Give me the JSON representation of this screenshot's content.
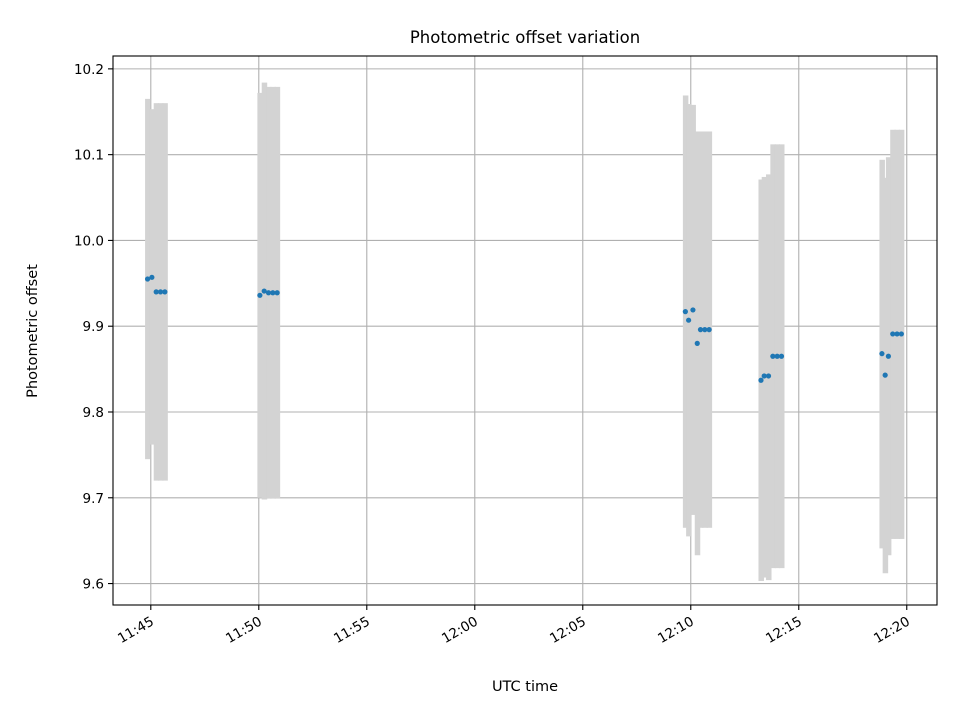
{
  "chart_data": {
    "type": "scatter",
    "title": "Photometric offset variation",
    "xlabel": "UTC time",
    "ylabel": "Photometric offset",
    "x_ticks": [
      "11:45",
      "11:50",
      "11:55",
      "12:00",
      "12:05",
      "12:10",
      "12:15",
      "12:20"
    ],
    "x_tick_minutes": [
      0,
      5,
      10,
      15,
      20,
      25,
      30,
      35
    ],
    "y_ticks": [
      "9.6",
      "9.7",
      "9.8",
      "9.9",
      "10.0",
      "10.1",
      "10.2"
    ],
    "xlim_minutes": [
      -1.75,
      36.4
    ],
    "ylim": [
      9.575,
      10.215
    ],
    "grid": true,
    "marker_color": "#1f77b4",
    "errorbar_color": "#d3d3d3",
    "points": [
      {
        "t": "11:44:51",
        "y": 9.955,
        "lo": 9.745,
        "hi": 10.165
      },
      {
        "t": "11:45:03",
        "y": 9.957,
        "lo": 9.762,
        "hi": 10.153
      },
      {
        "t": "11:45:15",
        "y": 9.94,
        "lo": 9.72,
        "hi": 10.16
      },
      {
        "t": "11:45:27",
        "y": 9.94,
        "lo": 9.72,
        "hi": 10.16
      },
      {
        "t": "11:45:39",
        "y": 9.94,
        "lo": 9.72,
        "hi": 10.16
      },
      {
        "t": "11:50:03",
        "y": 9.936,
        "lo": 9.7,
        "hi": 10.172
      },
      {
        "t": "11:50:15",
        "y": 9.941,
        "lo": 9.698,
        "hi": 10.184
      },
      {
        "t": "11:50:27",
        "y": 9.939,
        "lo": 9.699,
        "hi": 10.179
      },
      {
        "t": "11:50:39",
        "y": 9.939,
        "lo": 9.699,
        "hi": 10.179
      },
      {
        "t": "11:50:51",
        "y": 9.939,
        "lo": 9.699,
        "hi": 10.179
      },
      {
        "t": "12:09:45",
        "y": 9.917,
        "lo": 9.665,
        "hi": 10.169
      },
      {
        "t": "12:09:54",
        "y": 9.907,
        "lo": 9.655,
        "hi": 10.159
      },
      {
        "t": "12:10:06",
        "y": 9.919,
        "lo": 9.68,
        "hi": 10.158
      },
      {
        "t": "12:10:18",
        "y": 9.88,
        "lo": 9.633,
        "hi": 10.127
      },
      {
        "t": "12:10:27",
        "y": 9.896,
        "lo": 9.665,
        "hi": 10.127
      },
      {
        "t": "12:10:39",
        "y": 9.896,
        "lo": 9.665,
        "hi": 10.127
      },
      {
        "t": "12:10:51",
        "y": 9.896,
        "lo": 9.665,
        "hi": 10.127
      },
      {
        "t": "12:13:15",
        "y": 9.837,
        "lo": 9.603,
        "hi": 10.071
      },
      {
        "t": "12:13:24",
        "y": 9.842,
        "lo": 9.607,
        "hi": 10.074
      },
      {
        "t": "12:13:36",
        "y": 9.842,
        "lo": 9.604,
        "hi": 10.077
      },
      {
        "t": "12:13:48",
        "y": 9.865,
        "lo": 9.618,
        "hi": 10.112
      },
      {
        "t": "12:14:00",
        "y": 9.865,
        "lo": 9.618,
        "hi": 10.112
      },
      {
        "t": "12:14:12",
        "y": 9.865,
        "lo": 9.618,
        "hi": 10.112
      },
      {
        "t": "12:18:51",
        "y": 9.868,
        "lo": 9.641,
        "hi": 10.094
      },
      {
        "t": "12:19:00",
        "y": 9.843,
        "lo": 9.612,
        "hi": 10.073
      },
      {
        "t": "12:19:09",
        "y": 9.865,
        "lo": 9.633,
        "hi": 10.097
      },
      {
        "t": "12:19:21",
        "y": 9.891,
        "lo": 9.652,
        "hi": 10.129
      },
      {
        "t": "12:19:33",
        "y": 9.891,
        "lo": 9.652,
        "hi": 10.129
      },
      {
        "t": "12:19:45",
        "y": 9.891,
        "lo": 9.652,
        "hi": 10.129
      }
    ]
  }
}
